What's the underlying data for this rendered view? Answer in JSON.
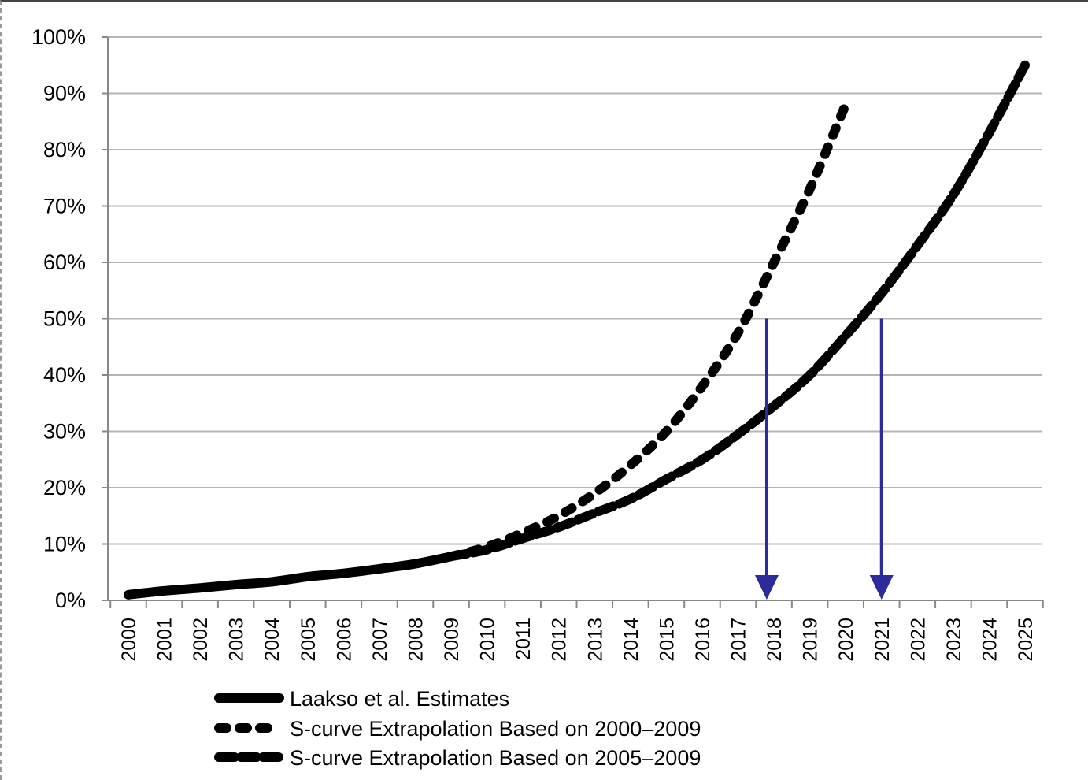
{
  "chart_data": {
    "type": "line",
    "title": "",
    "xlabel": "",
    "ylabel": "",
    "x": [
      2000,
      2001,
      2002,
      2003,
      2004,
      2005,
      2006,
      2007,
      2008,
      2009,
      2010,
      2011,
      2012,
      2013,
      2014,
      2015,
      2016,
      2017,
      2018,
      2019,
      2020,
      2021,
      2022,
      2023,
      2024,
      2025
    ],
    "x_tick_labels": [
      "2000",
      "2001",
      "2002",
      "2003",
      "2004",
      "2005",
      "2006",
      "2007",
      "2008",
      "2009",
      "2010",
      "2011",
      "2012",
      "2013",
      "2014",
      "2015",
      "2016",
      "2017",
      "2018",
      "2019",
      "2020",
      "2021",
      "2022",
      "2023",
      "2024",
      "2025"
    ],
    "y_tick_labels": [
      "0%",
      "10%",
      "20%",
      "30%",
      "40%",
      "50%",
      "60%",
      "70%",
      "80%",
      "90%",
      "100%"
    ],
    "ylim": [
      0,
      100
    ],
    "y_unit": "%",
    "grid": "horizontal",
    "legend_position": "bottom",
    "series": [
      {
        "name": "Laakso et al. Estimates",
        "style": "solid",
        "color": "#000000",
        "points": [
          [
            2000,
            1.0
          ],
          [
            2001,
            1.7
          ],
          [
            2002,
            2.2
          ],
          [
            2003,
            2.8
          ],
          [
            2004,
            3.3
          ],
          [
            2005,
            4.2
          ],
          [
            2006,
            4.8
          ],
          [
            2007,
            5.6
          ],
          [
            2008,
            6.5
          ],
          [
            2009,
            7.8
          ]
        ]
      },
      {
        "name": "S-curve Extrapolation Based on 2000–2009",
        "style": "dotted",
        "color": "#000000",
        "points": [
          [
            2009,
            7.8
          ],
          [
            2010,
            9.5
          ],
          [
            2011,
            12.0
          ],
          [
            2012,
            15.0
          ],
          [
            2013,
            19.0
          ],
          [
            2014,
            24.0
          ],
          [
            2015,
            30.0
          ],
          [
            2016,
            38.0
          ],
          [
            2017,
            47.5
          ],
          [
            2018,
            60.0
          ],
          [
            2019,
            73.0
          ],
          [
            2020,
            88.0
          ]
        ]
      },
      {
        "name": "S-curve Extrapolation Based on 2005–2009",
        "style": "dashed",
        "color": "#000000",
        "points": [
          [
            2009,
            7.8
          ],
          [
            2010,
            9.0
          ],
          [
            2011,
            11.0
          ],
          [
            2012,
            13.0
          ],
          [
            2013,
            15.5
          ],
          [
            2014,
            18.0
          ],
          [
            2015,
            21.5
          ],
          [
            2016,
            25.0
          ],
          [
            2017,
            29.5
          ],
          [
            2018,
            34.5
          ],
          [
            2019,
            40.0
          ],
          [
            2020,
            47.0
          ],
          [
            2021,
            54.5
          ],
          [
            2022,
            63.0
          ],
          [
            2023,
            72.0
          ],
          [
            2024,
            83.0
          ],
          [
            2025,
            95.0
          ]
        ]
      }
    ],
    "annotations": [
      {
        "type": "arrow",
        "color": "#2b2b9b",
        "x": 2017.8,
        "y_from": 50,
        "y_to": 0
      },
      {
        "type": "arrow",
        "color": "#2b2b9b",
        "x": 2021.0,
        "y_from": 50,
        "y_to": 0
      }
    ]
  }
}
